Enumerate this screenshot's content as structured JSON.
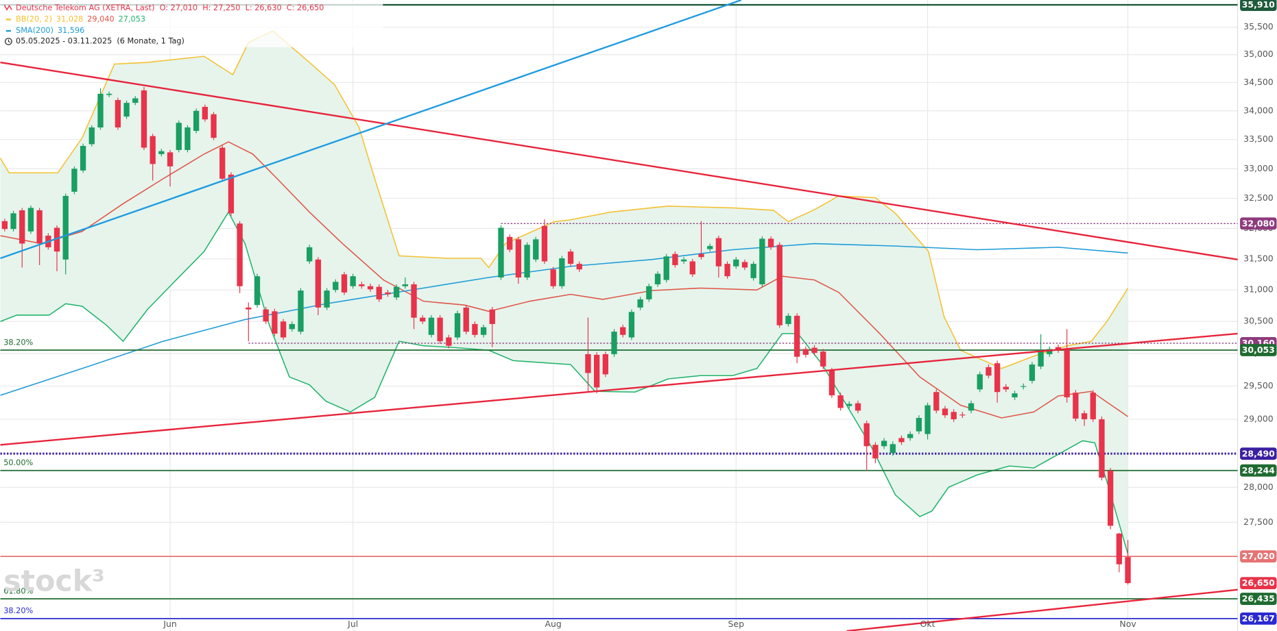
{
  "chart_data": {
    "type": "candlestick",
    "legend": {
      "title": "Deutsche Telekom AG (XETRA, Last)",
      "ohlc": [
        "O: 27,010",
        "H: 27,250",
        "L: 26,630",
        "C: 26,650"
      ],
      "bb_name": "BB(20, 2)",
      "bb_values": [
        "31,028",
        "29,040",
        "27,053"
      ],
      "sma_name": "SMA(200)",
      "sma_value": "31,596",
      "range": "05.05.2025 - 03.11.2025",
      "period": "(6 Monate, 1 Tag)"
    },
    "watermark": "stock³",
    "log_scale": true,
    "grid": true,
    "up_color": "#1a9e62",
    "down_color": "#e8334a",
    "xlim": [
      -0.5,
      141.6
    ],
    "xticks": [
      {
        "value": 19,
        "label": "Jun"
      },
      {
        "value": 40,
        "label": "Jul"
      },
      {
        "value": 63,
        "label": "Aug"
      },
      {
        "value": 84,
        "label": "Sep"
      },
      {
        "value": 106,
        "label": "Okt"
      },
      {
        "value": 129,
        "label": "Nov"
      }
    ],
    "ylim": [
      26000,
      36000
    ],
    "yticks": [
      {
        "value": 27500,
        "label": "27,500"
      },
      {
        "value": 28000,
        "label": "28,000"
      },
      {
        "value": 28500,
        "label": "28,500"
      },
      {
        "value": 29000,
        "label": "29,000"
      },
      {
        "value": 29500,
        "label": "29,500"
      },
      {
        "value": 30000,
        "label": "30,000"
      },
      {
        "value": 30500,
        "label": "30,500"
      },
      {
        "value": 31000,
        "label": "31,000"
      },
      {
        "value": 31500,
        "label": "31,500"
      },
      {
        "value": 32000,
        "label": "32,000"
      },
      {
        "value": 32500,
        "label": "32,500"
      },
      {
        "value": 33000,
        "label": "33,000"
      },
      {
        "value": 33500,
        "label": "33,500"
      },
      {
        "value": 34000,
        "label": "34,000"
      },
      {
        "value": 34500,
        "label": "34,500"
      },
      {
        "value": 35000,
        "label": "35,000"
      },
      {
        "value": 35500,
        "label": "35,500"
      }
    ],
    "open": [
      32120,
      31990,
      32300,
      31950,
      32300,
      31880,
      32010,
      31490,
      32610,
      32970,
      33420,
      33710,
      34280,
      34190,
      33900,
      34140,
      34360,
      33560,
      33250,
      33280,
      33320,
      33320,
      33650,
      34070,
      33940,
      33360,
      32900,
      32080,
      30720,
      30760,
      30690,
      30660,
      30500,
      30380,
      30340,
      31460,
      31490,
      30720,
      31000,
      31250,
      31060,
      31090,
      31060,
      31050,
      30960,
      30880,
      31060,
      31090,
      30560,
      30290,
      30560,
      30250,
      30250,
      30720,
      30460,
      30290,
      30690,
      31200,
      31860,
      31820,
      31200,
      31490,
      32040,
      31330,
      31060,
      31620,
      31420,
      29990,
      29980,
      29990,
      29990,
      30410,
      30250,
      30720,
      30850,
      31090,
      31160,
      31580,
      31460,
      31460,
      31580,
      31660,
      31840,
      31420,
      31380,
      31450,
      31190,
      31090,
      31830,
      31730,
      30460,
      30590,
      30070,
      30090,
      30030,
      29740,
      29360,
      29200,
      29240,
      28940,
      28620,
      28600,
      28500,
      28720,
      28720,
      28820,
      28780,
      29410,
      29160,
      29110,
      29070,
      29130,
      29450,
      29790,
      29850,
      29490,
      29330,
      29490,
      29580,
      29800,
      29990,
      30100,
      30070,
      29400,
      29090,
      29400,
      29000,
      28240,
      27340,
      27010
    ],
    "high": [
      32160,
      32290,
      32340,
      32380,
      32340,
      31920,
      32050,
      32580,
      33040,
      33430,
      33750,
      34400,
      34340,
      34230,
      34180,
      34260,
      34420,
      33600,
      33340,
      33320,
      33830,
      33750,
      34040,
      34110,
      33980,
      33400,
      32940,
      32120,
      30800,
      31260,
      30730,
      30700,
      30540,
      30500,
      31030,
      31730,
      31530,
      31030,
      31170,
      31290,
      31260,
      31130,
      31100,
      31090,
      31000,
      31090,
      31200,
      31130,
      30600,
      30600,
      30600,
      30290,
      30670,
      30760,
      30500,
      30450,
      30730,
      32050,
      31900,
      31860,
      31770,
      31860,
      32150,
      31370,
      31550,
      31660,
      31460,
      30560,
      30020,
      30030,
      30380,
      30450,
      30690,
      30890,
      31100,
      31300,
      31580,
      31620,
      31530,
      31500,
      32120,
      31750,
      31880,
      31460,
      31530,
      31490,
      31460,
      31870,
      31870,
      31770,
      30630,
      30630,
      30110,
      30130,
      30070,
      29780,
      29400,
      29270,
      29280,
      28980,
      28660,
      28720,
      28670,
      28760,
      28820,
      29060,
      29250,
      29450,
      29200,
      29150,
      29110,
      29280,
      29720,
      29830,
      29890,
      29530,
      29430,
      29540,
      29870,
      30300,
      30110,
      30140,
      30380,
      29440,
      29130,
      29440,
      29040,
      28280,
      27350,
      27250
    ],
    "low": [
      31950,
      31950,
      31360,
      31910,
      31400,
      31650,
      31300,
      31250,
      32570,
      32930,
      33380,
      33670,
      34240,
      33670,
      33860,
      34100,
      33320,
      32800,
      33210,
      32700,
      33280,
      33280,
      33610,
      33810,
      33490,
      32790,
      32210,
      30950,
      30190,
      30720,
      30460,
      30270,
      30210,
      30340,
      30300,
      31420,
      30600,
      30680,
      30960,
      30920,
      31020,
      31020,
      30970,
      30810,
      30890,
      30840,
      31020,
      30380,
      30460,
      30250,
      30150,
      30080,
      30210,
      30300,
      30250,
      30250,
      30100,
      31160,
      31610,
      31100,
      31160,
      31450,
      31420,
      31020,
      31020,
      31380,
      31290,
      29400,
      29390,
      29640,
      29950,
      30250,
      30210,
      30680,
      30810,
      31050,
      31120,
      31360,
      31420,
      31210,
      31490,
      31620,
      31200,
      31180,
      31340,
      31320,
      31150,
      31050,
      31650,
      30400,
      30420,
      29850,
      29940,
      29970,
      29760,
      29320,
      29130,
      29160,
      29090,
      28240,
      28350,
      28560,
      28460,
      28620,
      28680,
      28780,
      28700,
      29090,
      29020,
      28960,
      29020,
      29090,
      29410,
      29620,
      29250,
      29410,
      29290,
      29450,
      29540,
      29760,
      29950,
      30010,
      29250,
      28970,
      28900,
      28960,
      28100,
      27400,
      26800,
      26630
    ],
    "close": [
      31990,
      32250,
      31750,
      32340,
      31750,
      31690,
      31620,
      32540,
      33000,
      33390,
      33710,
      34300,
      34300,
      33710,
      34140,
      34220,
      33360,
      33080,
      33300,
      33040,
      33790,
      33710,
      34000,
      33850,
      33530,
      32830,
      32250,
      31060,
      30690,
      31220,
      30500,
      30310,
      30250,
      30460,
      30990,
      31690,
      30720,
      30990,
      31130,
      30960,
      31220,
      31060,
      31010,
      30850,
      30930,
      31050,
      31090,
      30560,
      30500,
      30560,
      30190,
      30120,
      30630,
      30340,
      30290,
      30410,
      30460,
      32010,
      31650,
      31200,
      31730,
      31820,
      31460,
      31060,
      31510,
      31420,
      31330,
      29700,
      29480,
      29680,
      30340,
      30290,
      30650,
      30850,
      31060,
      31260,
      31540,
      31400,
      31490,
      31250,
      31530,
      31710,
      31380,
      31220,
      31490,
      31360,
      31420,
      31830,
      31690,
      30440,
      30590,
      29950,
      29980,
      30010,
      29800,
      29360,
      29170,
      29230,
      29130,
      28600,
      28420,
      28680,
      28630,
      28660,
      28780,
      29020,
      29210,
      29130,
      29060,
      29000,
      29060,
      29240,
      29680,
      29660,
      29410,
      29450,
      29390,
      29500,
      29830,
      30040,
      30070,
      30050,
      29330,
      29010,
      29000,
      29000,
      28140,
      27450,
      26910,
      26650
    ],
    "band_fill": "#e6f4ec",
    "lines": [
      {
        "color": "#f5c02e",
        "x": [
          -0.5,
          0.5,
          3.3,
          6.1,
          8.9,
          12.6,
          16.4,
          22.9,
          26.2,
          28.0,
          30.8,
          35.0,
          37.9,
          40.7,
          42.5,
          45.3,
          50.9,
          54.7,
          55.6,
          57.5,
          63.1,
          64.9,
          69.6,
          76.2,
          83.7,
          88.3,
          90.0,
          93.0,
          95.8,
          100.0,
          102.3,
          106.1,
          107.9,
          109.8,
          114.5,
          118.2,
          122.0,
          124.8,
          126.6,
          129
        ],
        "values": [
          33180,
          32930,
          32930,
          32930,
          33530,
          34830,
          34860,
          34970,
          34640,
          35220,
          35430,
          34860,
          34460,
          33710,
          32830,
          31550,
          31510,
          31510,
          31360,
          31750,
          32110,
          32140,
          32270,
          32370,
          32340,
          32300,
          32110,
          32310,
          32540,
          32510,
          32250,
          31620,
          30570,
          30050,
          29770,
          29960,
          30120,
          30190,
          30500,
          31028
        ]
      },
      {
        "color": "#e05545",
        "x": [
          -0.5,
          4.2,
          8.9,
          13.6,
          18.2,
          22.9,
          25.7,
          28.5,
          31.3,
          35.0,
          38.8,
          43.5,
          48.1,
          52.8,
          55.6,
          60.3,
          65.0,
          68.7,
          74.3,
          79.9,
          86.4,
          89.3,
          93.0,
          95.8,
          100.5,
          105.1,
          109.8,
          114.5,
          118.2,
          121.0,
          124.8,
          129
        ],
        "values": [
          31880,
          31750,
          31950,
          32410,
          32830,
          33250,
          33460,
          33250,
          32830,
          32270,
          31750,
          31160,
          30820,
          30760,
          30660,
          30820,
          30930,
          30850,
          30990,
          31030,
          31000,
          31220,
          31160,
          30960,
          30310,
          29640,
          29210,
          29020,
          29110,
          29350,
          29420,
          29040
        ]
      },
      {
        "color": "#22b36b",
        "x": [
          -0.5,
          1.4,
          5.1,
          7.0,
          8.9,
          11.7,
          13.6,
          16.4,
          19.2,
          22.9,
          25.7,
          27.6,
          30.4,
          32.7,
          35.0,
          36.9,
          39.7,
          42.5,
          45.3,
          48.1,
          51.9,
          55.6,
          58.4,
          65.0,
          67.8,
          72.4,
          76.2,
          79.9,
          83.6,
          86.4,
          89.3,
          91.1,
          93.9,
          96.7,
          99.5,
          102.3,
          105.1,
          106.5,
          108.4,
          111.7,
          115.4,
          118.2,
          121.0,
          123.8,
          125.2,
          126.6,
          129
        ],
        "values": [
          30500,
          30600,
          30600,
          30780,
          30740,
          30440,
          30190,
          30690,
          31090,
          31620,
          32270,
          31750,
          30440,
          29640,
          29520,
          29270,
          29110,
          29330,
          30190,
          30120,
          30090,
          30050,
          29890,
          29830,
          29420,
          29410,
          29610,
          29660,
          29660,
          29770,
          30310,
          30310,
          29830,
          29210,
          28600,
          27890,
          27580,
          27660,
          28000,
          28180,
          28310,
          28280,
          28480,
          28680,
          28650,
          28080,
          27053
        ]
      },
      {
        "color": "#1e9bd7",
        "x": [
          -0.5,
          8.9,
          18.2,
          27.6,
          36.9,
          46.3,
          55.6,
          65.0,
          74.3,
          83.6,
          93.0,
          102.3,
          111.7,
          121.0,
          129
        ],
        "values": [
          29360,
          29770,
          30190,
          30530,
          30780,
          30990,
          31200,
          31380,
          31490,
          31650,
          31750,
          31710,
          31650,
          31690,
          31596
        ]
      }
    ],
    "trendlines": [
      {
        "color": "#e8233a",
        "x": [
          -0.5,
          141.6
        ],
        "values": [
          34860,
          31490
        ]
      },
      {
        "color": "#1e9be0",
        "x": [
          -0.5,
          84.6
        ],
        "values": [
          31510,
          36000
        ]
      },
      {
        "color": "#e8233a",
        "x": [
          -0.5,
          141.6
        ],
        "values": [
          28620,
          30310
        ]
      },
      {
        "color": "#e8233a",
        "x": [
          96.7,
          141.6
        ],
        "values": [
          26000,
          26560
        ]
      }
    ],
    "levels": [
      {
        "value": 35910,
        "label": "35,910",
        "color": "#1e5a3c",
        "dash": "solid",
        "width": 2
      },
      {
        "value": 32080,
        "label": "32,080",
        "color": "#8e3b7d",
        "dash": "dotted",
        "width": 1.2,
        "start": 57
      },
      {
        "value": 30160,
        "label": "30,160",
        "color": "#8e3b7d",
        "dash": "dotted",
        "width": 1.2,
        "start": 28
      },
      {
        "value": 30053,
        "label": "30,053",
        "color": "#1f6b30",
        "dash": "solid",
        "width": 1.5,
        "fib": "38.20%"
      },
      {
        "value": 28490,
        "label": "28,490",
        "color": "#3b1fa0",
        "dash": "dotted",
        "width": 2.5
      },
      {
        "value": 28244,
        "label": "28,244",
        "color": "#1f6b30",
        "dash": "solid",
        "width": 1.5,
        "fib": "50.00%"
      },
      {
        "value": 27020,
        "label": "27,020",
        "color": "#e57373",
        "dash": "solid",
        "width": 1.5
      },
      {
        "value": 26650,
        "label": "26,650",
        "color": "#e8334a",
        "dash": "none",
        "width": 0
      },
      {
        "value": 26435,
        "label": "26,435",
        "color": "#1f6b30",
        "dash": "solid",
        "width": 1.5,
        "fib": "61.80%"
      },
      {
        "value": 26167,
        "label": "26,167",
        "color": "#2a2ad0",
        "dash": "solid",
        "width": 1.5,
        "fib": "38.20%"
      }
    ]
  }
}
